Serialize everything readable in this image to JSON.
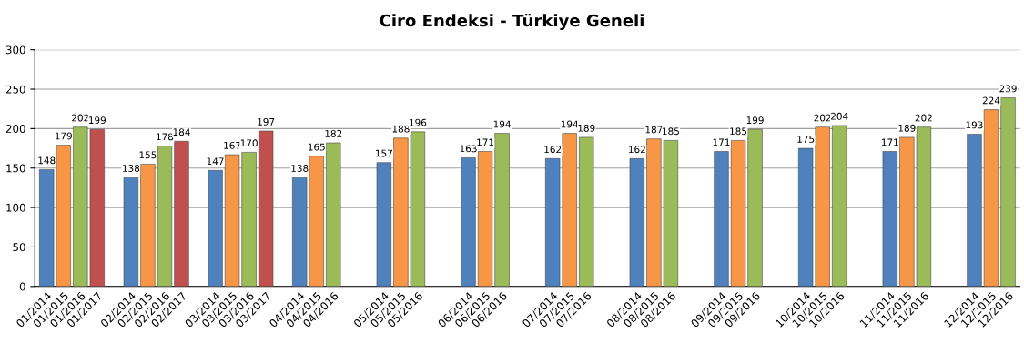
{
  "chart_data": {
    "type": "bar",
    "title": "Ciro Endeksi - Türkiye Geneli",
    "categories": [
      "01/2014",
      "01/2015",
      "01/2016",
      "01/2017",
      null,
      "02/2014",
      "02/2015",
      "02/2016",
      "02/2017",
      null,
      "03/2014",
      "03/2015",
      "03/2016",
      "03/2017",
      null,
      "04/2014",
      "04/2015",
      "04/2016",
      null,
      null,
      "05/2014",
      "05/2015",
      "05/2016",
      null,
      null,
      "06/2014",
      "06/2015",
      "06/2016",
      null,
      null,
      "07/2014",
      "07/2015",
      "07/2016",
      null,
      null,
      "08/2014",
      "08/2015",
      "08/2016",
      null,
      null,
      "09/2014",
      "09/2015",
      "09/2016",
      null,
      null,
      "10/2014",
      "10/2015",
      "10/2016",
      null,
      null,
      "11/2014",
      "11/2015",
      "11/2016",
      null,
      null,
      "12/2014",
      "12/2015",
      "12/2016"
    ],
    "values": [
      148,
      179,
      202,
      199,
      null,
      138,
      155,
      178,
      184,
      null,
      147,
      167,
      170,
      197,
      null,
      138,
      165,
      182,
      null,
      null,
      157,
      188,
      196,
      null,
      null,
      163,
      171,
      194,
      null,
      null,
      162,
      194,
      189,
      null,
      null,
      162,
      187,
      185,
      null,
      null,
      171,
      185,
      199,
      null,
      null,
      175,
      202,
      204,
      null,
      null,
      171,
      189,
      202,
      null,
      null,
      193,
      224,
      239
    ],
    "colors": [
      "#4f81bd",
      "#f79646",
      "#9bbb59",
      "#c0504d",
      "#ffffff",
      "#4f81bd",
      "#f79646",
      "#9bbb59",
      "#c0504d",
      "#ffffff",
      "#4f81bd",
      "#f79646",
      "#9bbb59",
      "#c0504d",
      "#ffffff",
      "#4f81bd",
      "#f79646",
      "#9bbb59",
      "#ffffff",
      "#ffffff",
      "#4f81bd",
      "#f79646",
      "#9bbb59",
      "#ffffff",
      "#ffffff",
      "#4f81bd",
      "#f79646",
      "#9bbb59",
      "#ffffff",
      "#ffffff",
      "#4f81bd",
      "#f79646",
      "#9bbb59",
      "#ffffff",
      "#ffffff",
      "#4f81bd",
      "#f79646",
      "#9bbb59",
      "#ffffff",
      "#ffffff",
      "#4f81bd",
      "#f79646",
      "#9bbb59",
      "#ffffff",
      "#ffffff",
      "#4f81bd",
      "#f79646",
      "#9bbb59",
      "#ffffff",
      "#ffffff",
      "#4f81bd",
      "#f79646",
      "#9bbb59",
      "#ffffff",
      "#ffffff",
      "#4f81bd",
      "#f79646",
      "#9bbb59"
    ],
    "ylim": [
      0,
      300
    ],
    "yticks": [
      0,
      50,
      100,
      150,
      200,
      250,
      300
    ],
    "grid": "y",
    "data_labels": true,
    "legend": false
  }
}
